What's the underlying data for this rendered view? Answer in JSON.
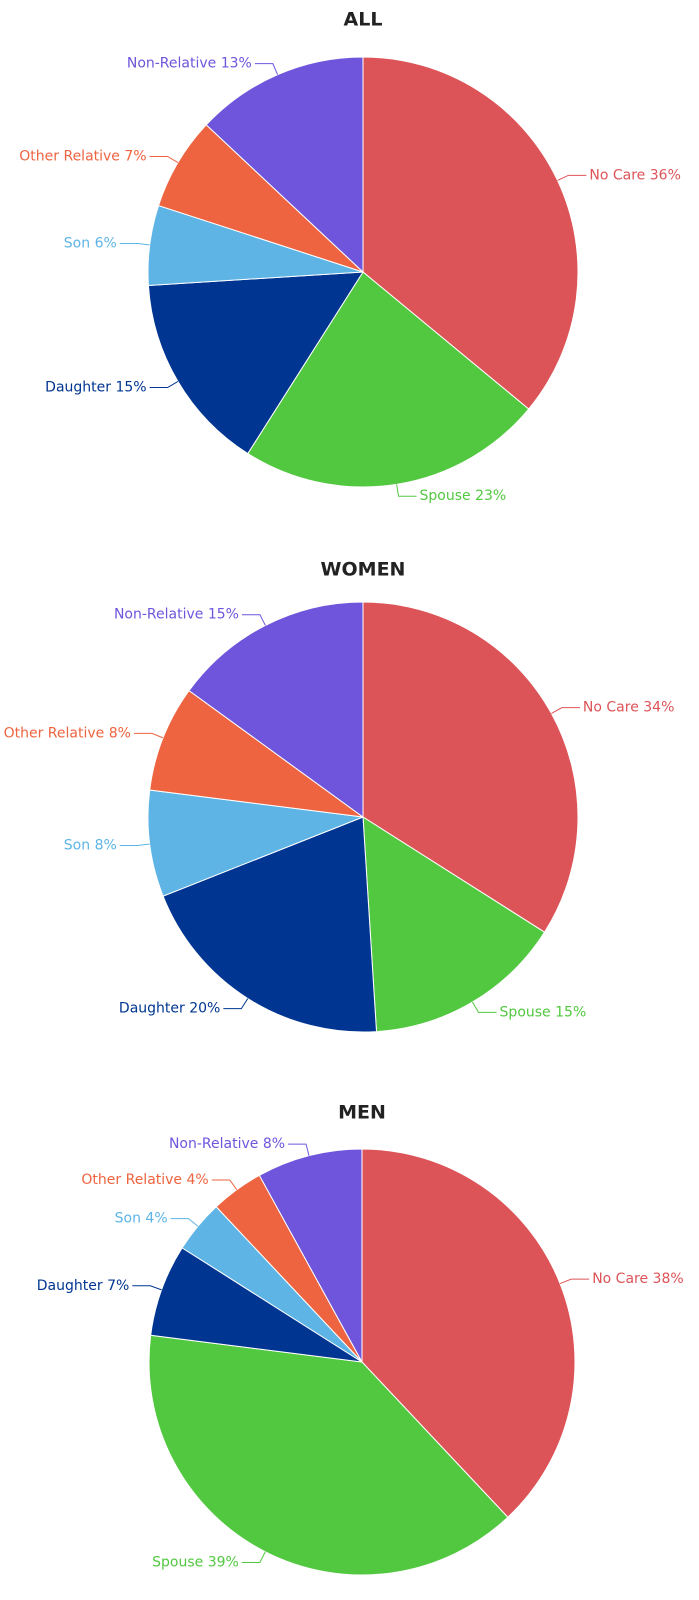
{
  "chart_data": [
    {
      "type": "pie",
      "title": "ALL",
      "categories": [
        "No Care",
        "Spouse",
        "Daughter",
        "Son",
        "Other Relative",
        "Non-Relative"
      ],
      "values": [
        36,
        23,
        15,
        6,
        7,
        13
      ],
      "value_labels": [
        "36%",
        "23%",
        "15%",
        "6%",
        "7%",
        "13%"
      ],
      "colors": [
        "#dd5458",
        "#52c840",
        "#003591",
        "#5db4e5",
        "#ee6440",
        "#6f55dc"
      ]
    },
    {
      "type": "pie",
      "title": "WOMEN",
      "categories": [
        "No Care",
        "Spouse",
        "Daughter",
        "Son",
        "Other Relative",
        "Non-Relative"
      ],
      "values": [
        34,
        15,
        20,
        8,
        8,
        15
      ],
      "value_labels": [
        "34%",
        "15%",
        "20%",
        "8%",
        "8%",
        "15%"
      ],
      "colors": [
        "#dd5458",
        "#52c840",
        "#003591",
        "#5db4e5",
        "#ee6440",
        "#6f55dc"
      ]
    },
    {
      "type": "pie",
      "title": "MEN",
      "categories": [
        "No Care",
        "Spouse",
        "Daughter",
        "Son",
        "Other Relative",
        "Non-Relative"
      ],
      "values": [
        38,
        39,
        7,
        4,
        4,
        8
      ],
      "value_labels": [
        "38%",
        "39%",
        "7%",
        "4%",
        "4%",
        "8%"
      ],
      "colors": [
        "#dd5458",
        "#52c840",
        "#003591",
        "#5db4e5",
        "#ee6440",
        "#6f55dc"
      ]
    }
  ]
}
